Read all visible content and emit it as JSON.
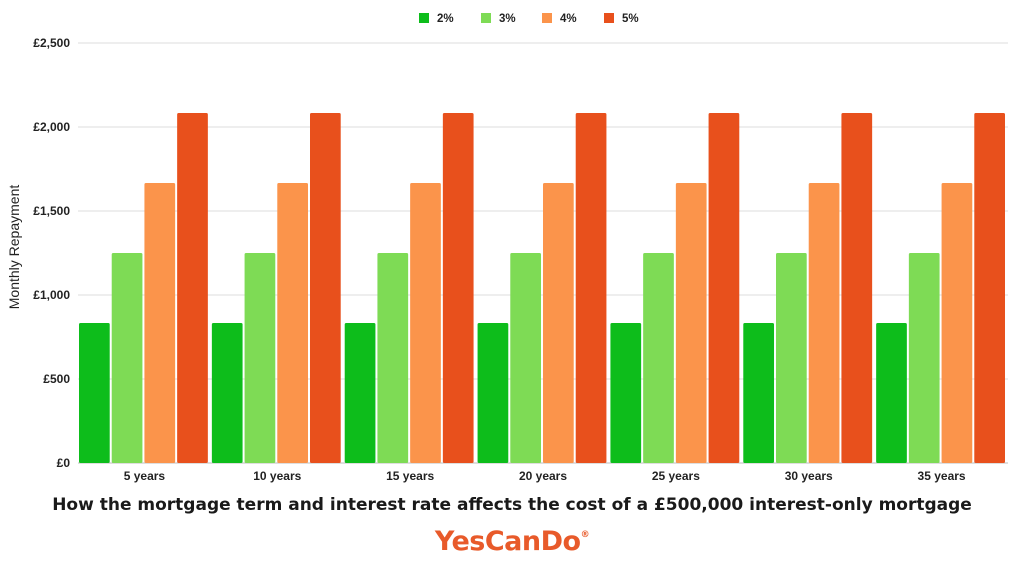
{
  "chart_data": {
    "type": "bar",
    "title": "How the mortgage term and interest rate affects the cost of a £500,000 interest-only mortgage",
    "xlabel": "",
    "ylabel": "Monthly Repayment",
    "ylim": [
      0,
      2500
    ],
    "yticks": [
      0,
      500,
      1000,
      1500,
      2000,
      2500
    ],
    "ytick_labels": [
      "£0",
      "£500",
      "£1,000",
      "£1,500",
      "£2,000",
      "£2,500"
    ],
    "categories": [
      "5 years",
      "10 years",
      "15 years",
      "20 years",
      "25 years",
      "30 years",
      "35 years"
    ],
    "series": [
      {
        "name": "2%",
        "color": "#0dbd1b",
        "values": [
          833,
          833,
          833,
          833,
          833,
          833,
          833
        ]
      },
      {
        "name": "3%",
        "color": "#7edb55",
        "values": [
          1250,
          1250,
          1250,
          1250,
          1250,
          1250,
          1250
        ]
      },
      {
        "name": "4%",
        "color": "#fb944b",
        "values": [
          1667,
          1667,
          1667,
          1667,
          1667,
          1667,
          1667
        ]
      },
      {
        "name": "5%",
        "color": "#e8501c",
        "values": [
          2083,
          2083,
          2083,
          2083,
          2083,
          2083,
          2083
        ]
      }
    ],
    "legend": "top-center",
    "grid": true
  },
  "branding": {
    "logo_text": "YesCanDo",
    "logo_mark": "®"
  }
}
